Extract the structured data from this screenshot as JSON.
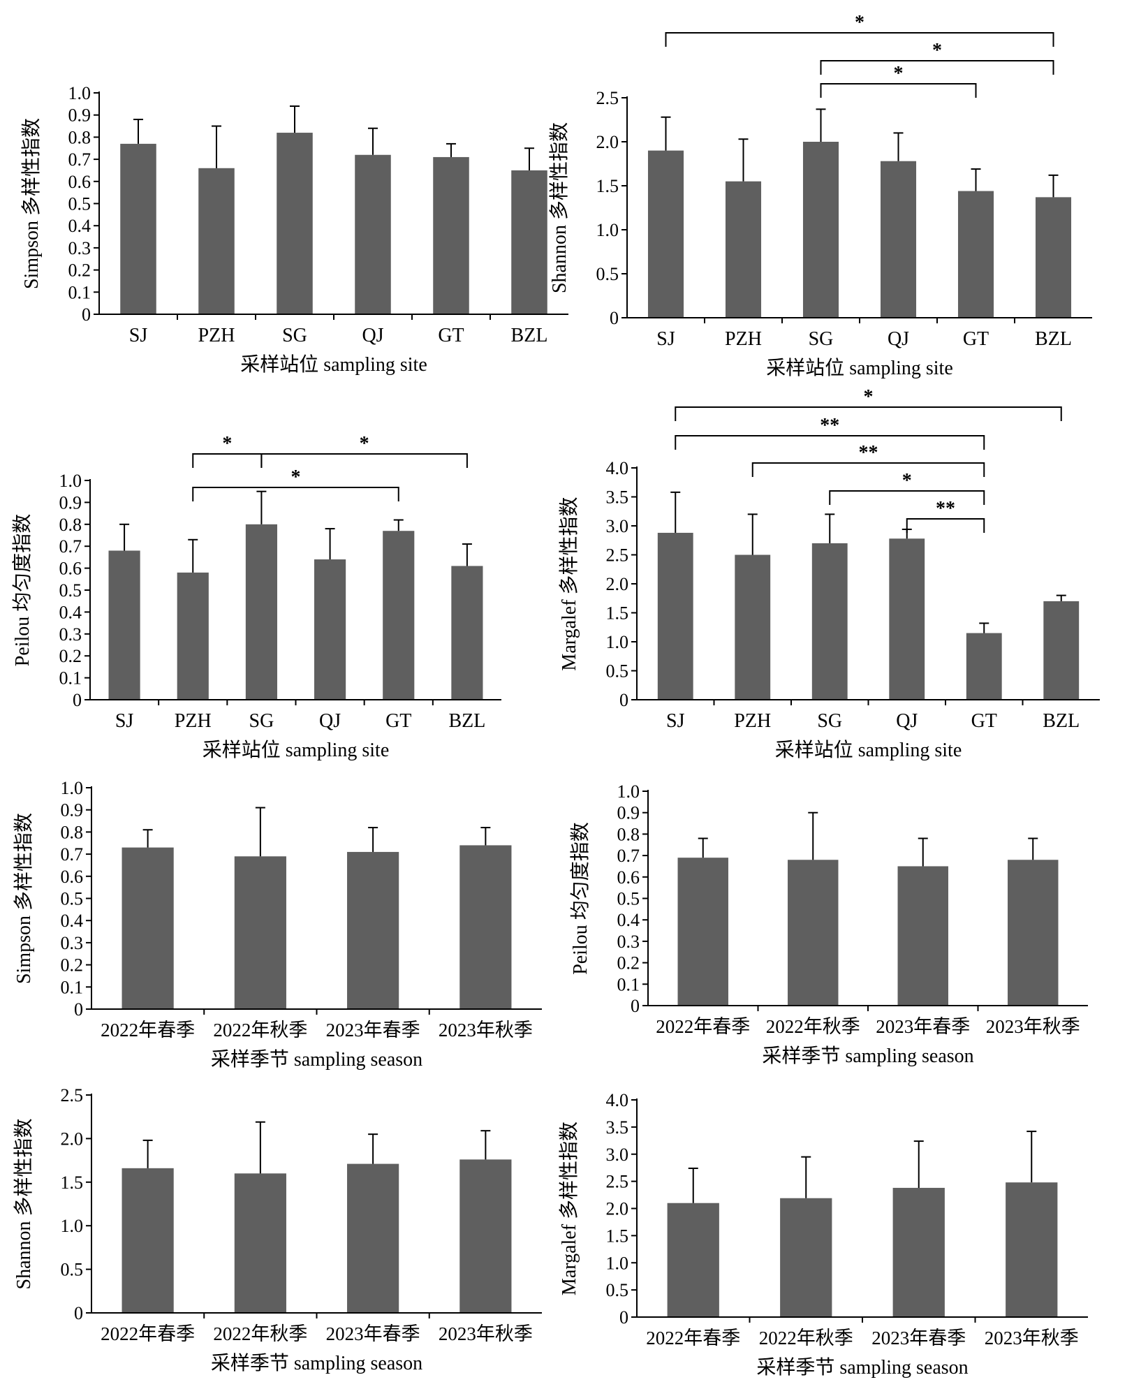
{
  "colors": {
    "bar": "#5f5f5f",
    "axis": "#000000",
    "errorbar": "#000000"
  },
  "chart_data": [
    {
      "type": "bar",
      "categories": [
        "SJ",
        "PZH",
        "SG",
        "QJ",
        "GT",
        "BZL"
      ],
      "values": [
        0.77,
        0.66,
        0.82,
        0.72,
        0.71,
        0.65
      ],
      "errors": [
        0.11,
        0.19,
        0.12,
        0.12,
        0.06,
        0.1
      ],
      "ylabel": "Simpson 多样性指数",
      "xlabel": "采样站位 sampling site",
      "ylim": [
        0,
        1.0
      ],
      "yticks": [
        "0",
        "0.1",
        "0.2",
        "0.3",
        "0.4",
        "0.5",
        "0.6",
        "0.7",
        "0.8",
        "0.9",
        "1.0"
      ],
      "significance": []
    },
    {
      "type": "bar",
      "categories": [
        "SJ",
        "PZH",
        "SG",
        "QJ",
        "GT",
        "BZL"
      ],
      "values": [
        1.9,
        1.55,
        2.0,
        1.78,
        1.44,
        1.37
      ],
      "errors": [
        0.38,
        0.48,
        0.37,
        0.32,
        0.25,
        0.25
      ],
      "ylabel": "Shannon 多样性指数",
      "xlabel": "采样站位 sampling site",
      "ylim": [
        0,
        2.5
      ],
      "yticks": [
        "0",
        "0.5",
        "1.0",
        "1.5",
        "2.0",
        "2.5"
      ],
      "significance": [
        {
          "from": "SJ",
          "to": "BZL",
          "mark": "*"
        },
        {
          "from": "SG",
          "to": "BZL",
          "mark": "*"
        },
        {
          "from": "SG",
          "to": "GT",
          "mark": "*"
        }
      ]
    },
    {
      "type": "bar",
      "categories": [
        "SJ",
        "PZH",
        "SG",
        "QJ",
        "GT",
        "BZL"
      ],
      "values": [
        0.68,
        0.58,
        0.8,
        0.64,
        0.77,
        0.61
      ],
      "errors": [
        0.12,
        0.15,
        0.15,
        0.14,
        0.05,
        0.1
      ],
      "ylabel": "Peilou 均匀度指数",
      "xlabel": "采样站位 sampling site",
      "ylim": [
        0,
        1.0
      ],
      "yticks": [
        "0",
        "0.1",
        "0.2",
        "0.3",
        "0.4",
        "0.5",
        "0.6",
        "0.7",
        "0.8",
        "0.9",
        "1.0"
      ],
      "significance": [
        {
          "from": "PZH",
          "to": "SG",
          "mark": "*"
        },
        {
          "from": "SG",
          "to": "BZL",
          "mark": "*"
        },
        {
          "from": "PZH",
          "to": "GT",
          "mark": "*"
        }
      ]
    },
    {
      "type": "bar",
      "categories": [
        "SJ",
        "PZH",
        "SG",
        "QJ",
        "GT",
        "BZL"
      ],
      "values": [
        2.88,
        2.5,
        2.7,
        2.78,
        1.15,
        1.7
      ],
      "errors": [
        0.7,
        0.7,
        0.5,
        0.16,
        0.17,
        0.1
      ],
      "ylabel": "Margalef 多样性指数",
      "xlabel": "采样站位 sampling site",
      "ylim": [
        0,
        4.0
      ],
      "yticks": [
        "0",
        "0.5",
        "1.0",
        "1.5",
        "2.0",
        "2.5",
        "3.0",
        "3.5",
        "4.0"
      ],
      "significance": [
        {
          "from": "SJ",
          "to": "BZL",
          "mark": "*"
        },
        {
          "from": "SJ",
          "to": "GT",
          "mark": "**"
        },
        {
          "from": "PZH",
          "to": "GT",
          "mark": "**"
        },
        {
          "from": "SG",
          "to": "GT",
          "mark": "*"
        },
        {
          "from": "QJ",
          "to": "GT",
          "mark": "**"
        }
      ]
    },
    {
      "type": "bar",
      "categories": [
        "2022年春季",
        "2022年秋季",
        "2023年春季",
        "2023年秋季"
      ],
      "values": [
        0.73,
        0.69,
        0.71,
        0.74
      ],
      "errors": [
        0.08,
        0.22,
        0.11,
        0.08
      ],
      "ylabel": "Simpson 多样性指数",
      "xlabel": "采样季节 sampling season",
      "ylim": [
        0,
        1.0
      ],
      "yticks": [
        "0",
        "0.1",
        "0.2",
        "0.3",
        "0.4",
        "0.5",
        "0.6",
        "0.7",
        "0.8",
        "0.9",
        "1.0"
      ],
      "significance": []
    },
    {
      "type": "bar",
      "categories": [
        "2022年春季",
        "2022年秋季",
        "2023年春季",
        "2023年秋季"
      ],
      "values": [
        0.69,
        0.68,
        0.65,
        0.68
      ],
      "errors": [
        0.09,
        0.22,
        0.13,
        0.1
      ],
      "ylabel": "Peilou 均匀度指数",
      "xlabel": "采样季节 sampling season",
      "ylim": [
        0,
        1.0
      ],
      "yticks": [
        "0",
        "0.1",
        "0.2",
        "0.3",
        "0.4",
        "0.5",
        "0.6",
        "0.7",
        "0.8",
        "0.9",
        "1.0"
      ],
      "significance": []
    },
    {
      "type": "bar",
      "categories": [
        "2022年春季",
        "2022年秋季",
        "2023年春季",
        "2023年秋季"
      ],
      "values": [
        1.66,
        1.6,
        1.71,
        1.76
      ],
      "errors": [
        0.32,
        0.59,
        0.34,
        0.33
      ],
      "ylabel": "Shannon 多样性指数",
      "xlabel": "采样季节 sampling season",
      "ylim": [
        0,
        2.5
      ],
      "yticks": [
        "0",
        "0.5",
        "1.0",
        "1.5",
        "2.0",
        "2.5"
      ],
      "significance": []
    },
    {
      "type": "bar",
      "categories": [
        "2022年春季",
        "2022年秋季",
        "2023年春季",
        "2023年秋季"
      ],
      "values": [
        2.1,
        2.19,
        2.38,
        2.48
      ],
      "errors": [
        0.64,
        0.76,
        0.86,
        0.94
      ],
      "ylabel": "Margalef 多样性指数",
      "xlabel": "采样季节 sampling season",
      "ylim": [
        0,
        4.0
      ],
      "yticks": [
        "0",
        "0.5",
        "1.0",
        "1.5",
        "2.0",
        "2.5",
        "3.0",
        "3.5",
        "4.0"
      ],
      "significance": []
    }
  ]
}
